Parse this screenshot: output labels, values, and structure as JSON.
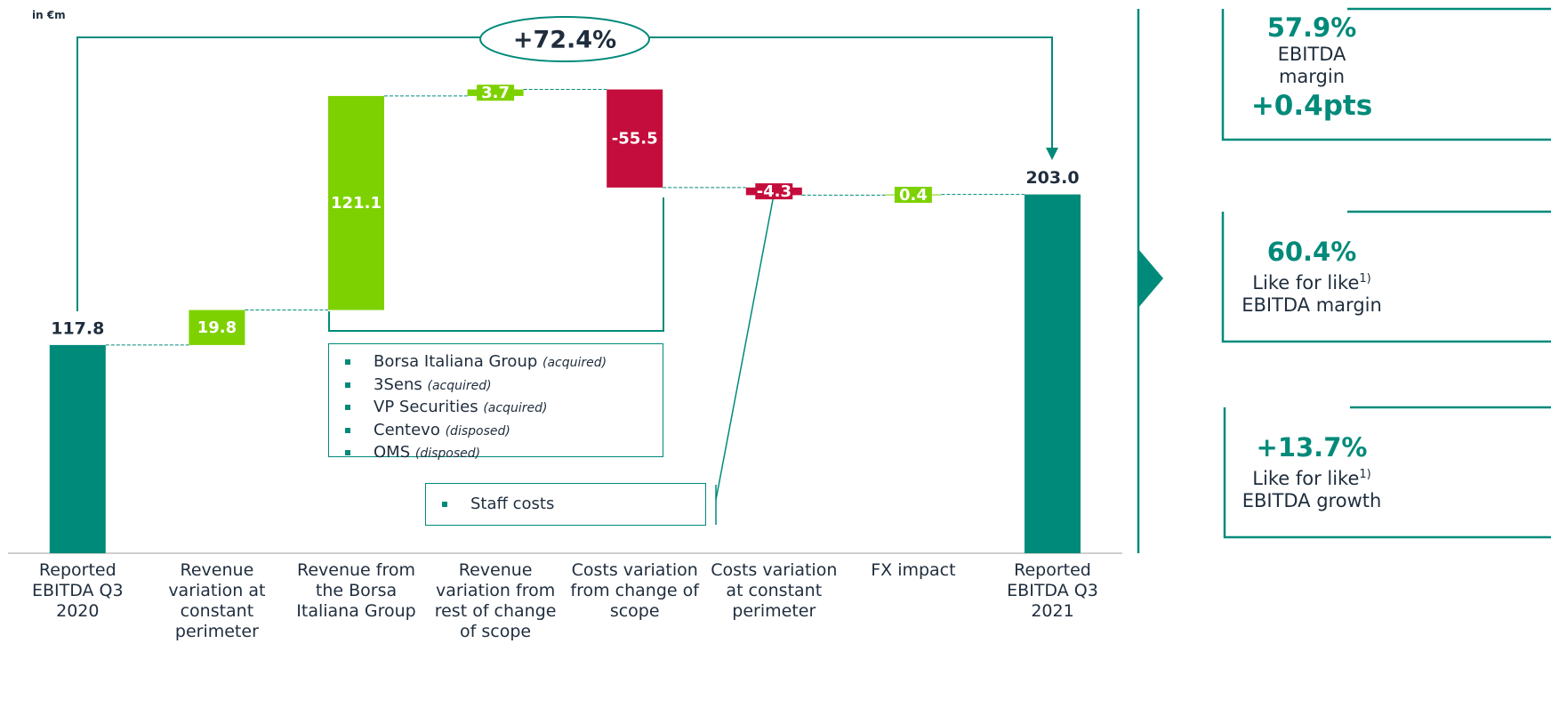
{
  "chart_data": {
    "type": "waterfall",
    "unit_label": "in €m",
    "annotation": "+72.4%",
    "categories": [
      "Reported EBITDA Q3 2020",
      "Revenue variation at constant perimeter",
      "Revenue from the Borsa Italiana Group",
      "Revenue variation from rest of change of scope",
      "Costs variation from change of scope",
      "Costs variation at constant perimeter",
      "FX impact",
      "Reported EBITDA Q3 2021"
    ],
    "values": [
      117.8,
      19.8,
      121.1,
      3.7,
      -55.5,
      -4.3,
      0.4,
      203.0
    ],
    "value_labels": [
      "117.8",
      "19.8",
      "121.1",
      "3.7",
      "-55.5",
      "-4.3",
      "0.4",
      "203.0"
    ],
    "total_color": "#008a7a",
    "increase_color": "#7ed100",
    "decrease_color": "#c40d3c",
    "ylim": [
      0,
      313
    ],
    "callouts": [
      {
        "items": [
          {
            "name": "Borsa Italiana Group",
            "note": "(acquired)"
          },
          {
            "name": "3Sens",
            "note": "(acquired)"
          },
          {
            "name": "VP Securities",
            "note": "(acquired)"
          },
          {
            "name": "Centevo",
            "note": "(disposed)"
          },
          {
            "name": "OMS",
            "note": "(disposed)"
          }
        ]
      },
      {
        "items": [
          {
            "name": "Staff costs"
          }
        ]
      }
    ]
  },
  "kpis": [
    {
      "value": "57.9%",
      "label": "EBITDA",
      "label2": "margin",
      "change": "+0.4pts"
    },
    {
      "value": "60.4%",
      "label": "Like for like",
      "footnote": "1)",
      "label2": "EBITDA margin"
    },
    {
      "value": "+13.7%",
      "label": "Like for like",
      "footnote": "1)",
      "label2": "EBITDA growth"
    }
  ]
}
